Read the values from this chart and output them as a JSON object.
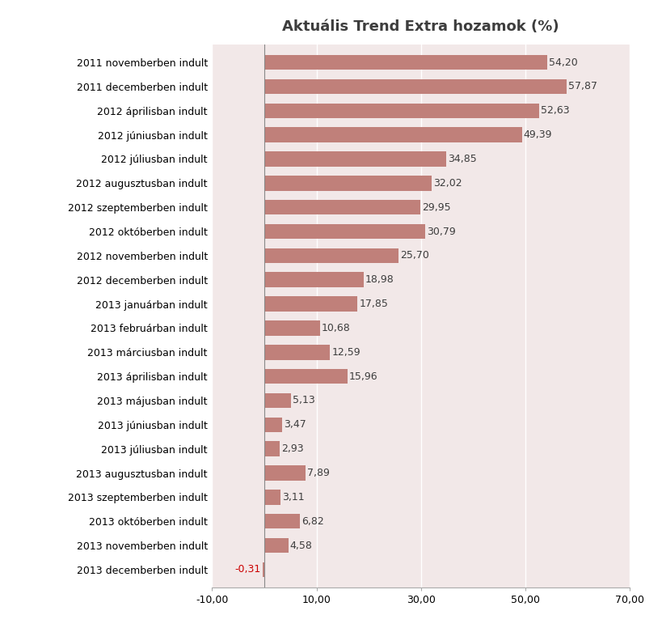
{
  "title": "Aktuális Trend Extra hozamok (%)",
  "categories": [
    "2011 novemberben indult",
    "2011 decemberben indult",
    "2012 áprilisban indult",
    "2012 júniusban indult",
    "2012 júliusban indult",
    "2012 augusztusban indult",
    "2012 szeptemberben indult",
    "2012 októberben indult",
    "2012 novemberben indult",
    "2012 decemberben indult",
    "2013 januárban indult",
    "2013 februárban indult",
    "2013 márciusban indult",
    "2013 áprilisban indult",
    "2013 májusban indult",
    "2013 júniusban indult",
    "2013 júliusban indult",
    "2013 augusztusban indult",
    "2013 szeptemberben indult",
    "2013 októberben indult",
    "2013 novemberben indult",
    "2013 decemberben indult"
  ],
  "values": [
    54.2,
    57.87,
    52.63,
    49.39,
    34.85,
    32.02,
    29.95,
    30.79,
    25.7,
    18.98,
    17.85,
    10.68,
    12.59,
    15.96,
    5.13,
    3.47,
    2.93,
    7.89,
    3.11,
    6.82,
    4.58,
    -0.31
  ],
  "bar_color_positive": "#c0807a",
  "label_color_positive": "#3d3d3d",
  "label_color_negative": "#cc0000",
  "plot_bg_color": "#f2e8e8",
  "fig_bg_color": "#ffffff",
  "xlim": [
    -10,
    70
  ],
  "xticks": [
    -10,
    10,
    30,
    50,
    70
  ],
  "xtick_labels": [
    "-10,00",
    "10,00",
    "30,00",
    "50,00",
    "70,00"
  ],
  "title_fontsize": 13,
  "ytick_fontsize": 9,
  "xtick_fontsize": 9,
  "bar_label_fontsize": 9,
  "bar_height": 0.62
}
